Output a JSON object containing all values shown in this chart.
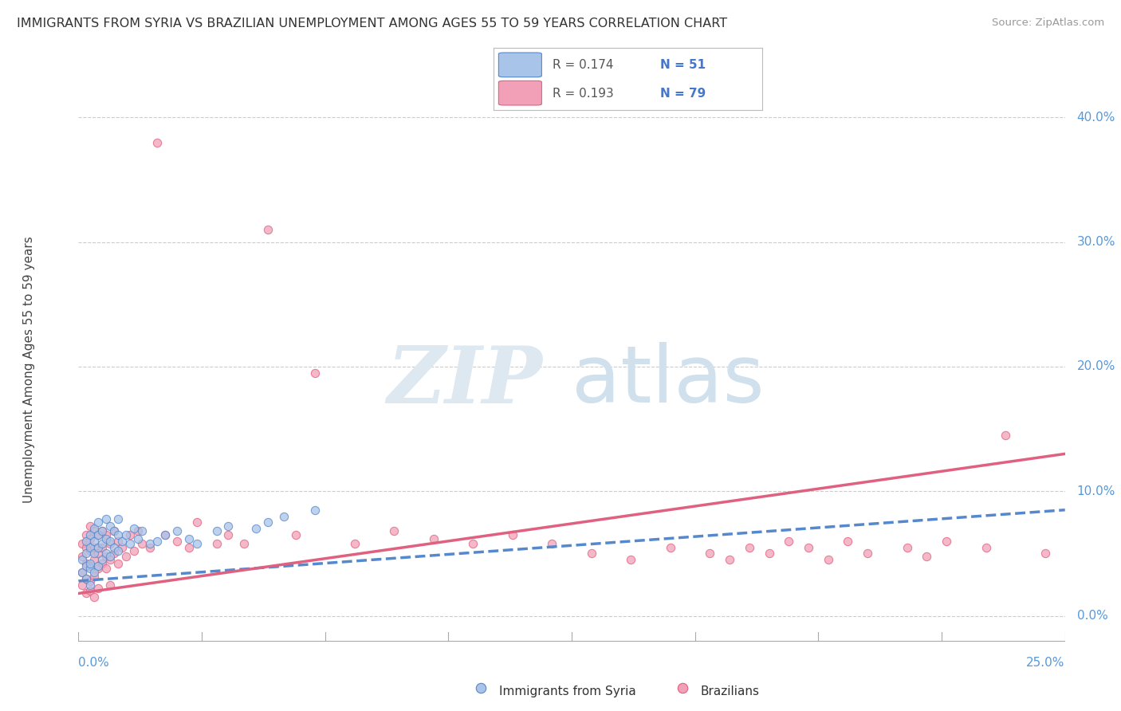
{
  "title": "IMMIGRANTS FROM SYRIA VS BRAZILIAN UNEMPLOYMENT AMONG AGES 55 TO 59 YEARS CORRELATION CHART",
  "source": "Source: ZipAtlas.com",
  "ylabel": "Unemployment Among Ages 55 to 59 years",
  "color_syria": "#a8c4e8",
  "color_brazil": "#f2a0b8",
  "color_syria_line": "#5588cc",
  "color_brazil_line": "#e06080",
  "background_color": "#ffffff",
  "xmin": 0.0,
  "xmax": 0.25,
  "ymin": -0.025,
  "ymax": 0.42,
  "ytick_vals": [
    0.0,
    0.1,
    0.2,
    0.3,
    0.4
  ],
  "ytick_labels": [
    "0.0%",
    "10.0%",
    "20.0%",
    "30.0%",
    "40.0%"
  ],
  "xtick_left": "0.0%",
  "xtick_right": "25.0%",
  "legend_r1": "R = 0.174",
  "legend_n1": "N = 51",
  "legend_r2": "R = 0.193",
  "legend_n2": "N = 79",
  "scatter_syria_x": [
    0.001,
    0.001,
    0.002,
    0.002,
    0.002,
    0.002,
    0.003,
    0.003,
    0.003,
    0.003,
    0.003,
    0.004,
    0.004,
    0.004,
    0.004,
    0.005,
    0.005,
    0.005,
    0.005,
    0.006,
    0.006,
    0.006,
    0.007,
    0.007,
    0.007,
    0.008,
    0.008,
    0.008,
    0.009,
    0.009,
    0.01,
    0.01,
    0.01,
    0.011,
    0.012,
    0.013,
    0.014,
    0.015,
    0.016,
    0.018,
    0.02,
    0.022,
    0.025,
    0.028,
    0.03,
    0.035,
    0.038,
    0.045,
    0.048,
    0.052,
    0.06
  ],
  "scatter_syria_y": [
    0.035,
    0.045,
    0.04,
    0.05,
    0.03,
    0.06,
    0.038,
    0.042,
    0.055,
    0.025,
    0.065,
    0.035,
    0.05,
    0.06,
    0.07,
    0.04,
    0.055,
    0.065,
    0.075,
    0.045,
    0.058,
    0.068,
    0.05,
    0.062,
    0.078,
    0.048,
    0.06,
    0.072,
    0.055,
    0.068,
    0.052,
    0.065,
    0.078,
    0.06,
    0.065,
    0.058,
    0.07,
    0.062,
    0.068,
    0.058,
    0.06,
    0.065,
    0.068,
    0.062,
    0.058,
    0.068,
    0.072,
    0.07,
    0.075,
    0.08,
    0.085
  ],
  "scatter_brazil_x": [
    0.001,
    0.001,
    0.001,
    0.001,
    0.002,
    0.002,
    0.002,
    0.002,
    0.002,
    0.003,
    0.003,
    0.003,
    0.003,
    0.003,
    0.003,
    0.004,
    0.004,
    0.004,
    0.004,
    0.004,
    0.005,
    0.005,
    0.005,
    0.005,
    0.006,
    0.006,
    0.006,
    0.007,
    0.007,
    0.007,
    0.008,
    0.008,
    0.008,
    0.009,
    0.009,
    0.01,
    0.01,
    0.011,
    0.012,
    0.013,
    0.014,
    0.015,
    0.016,
    0.018,
    0.02,
    0.022,
    0.025,
    0.028,
    0.03,
    0.035,
    0.038,
    0.042,
    0.048,
    0.055,
    0.06,
    0.07,
    0.08,
    0.09,
    0.1,
    0.11,
    0.12,
    0.13,
    0.14,
    0.15,
    0.16,
    0.165,
    0.17,
    0.175,
    0.18,
    0.185,
    0.19,
    0.195,
    0.2,
    0.21,
    0.215,
    0.22,
    0.23,
    0.235,
    0.245
  ],
  "scatter_brazil_y": [
    0.035,
    0.048,
    0.025,
    0.058,
    0.03,
    0.042,
    0.055,
    0.018,
    0.065,
    0.028,
    0.04,
    0.052,
    0.062,
    0.02,
    0.072,
    0.032,
    0.045,
    0.055,
    0.068,
    0.015,
    0.038,
    0.05,
    0.065,
    0.022,
    0.042,
    0.055,
    0.068,
    0.048,
    0.038,
    0.065,
    0.045,
    0.058,
    0.025,
    0.05,
    0.068,
    0.042,
    0.06,
    0.055,
    0.048,
    0.065,
    0.052,
    0.068,
    0.058,
    0.055,
    0.38,
    0.065,
    0.06,
    0.055,
    0.075,
    0.058,
    0.065,
    0.058,
    0.31,
    0.065,
    0.195,
    0.058,
    0.068,
    0.062,
    0.058,
    0.065,
    0.058,
    0.05,
    0.045,
    0.055,
    0.05,
    0.045,
    0.055,
    0.05,
    0.06,
    0.055,
    0.045,
    0.06,
    0.05,
    0.055,
    0.048,
    0.06,
    0.055,
    0.145,
    0.05
  ],
  "trend_syria_x0": 0.0,
  "trend_syria_y0": 0.028,
  "trend_syria_x1": 0.25,
  "trend_syria_y1": 0.085,
  "trend_brazil_x0": 0.0,
  "trend_brazil_y0": 0.018,
  "trend_brazil_x1": 0.25,
  "trend_brazil_y1": 0.13
}
